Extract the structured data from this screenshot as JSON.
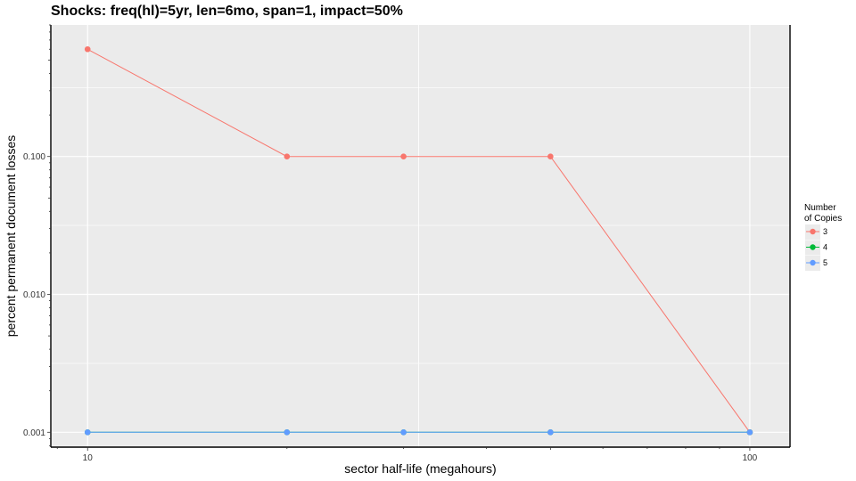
{
  "chart_data": {
    "type": "line",
    "title": "Shocks: freq(hl)=5yr, len=6mo, span=1, impact=50%",
    "xlabel": "sector half-life (megahours)",
    "ylabel": "percent permanent document losses",
    "x_scale": "log10",
    "y_scale": "log10",
    "xlim": [
      8.8,
      115
    ],
    "ylim": [
      0.00078,
      0.9
    ],
    "x_ticks": [
      10,
      100
    ],
    "x_tick_labels": [
      "10",
      "100"
    ],
    "y_ticks": [
      0.001,
      0.01,
      0.1
    ],
    "y_tick_labels": [
      "0.001",
      "0.010",
      "0.100"
    ],
    "grid": true,
    "legend": {
      "title_lines": [
        "Number",
        "of Copies"
      ],
      "position": "right"
    },
    "series": [
      {
        "name": "3",
        "color": "#f8766d",
        "x": [
          10,
          20,
          30,
          50,
          100
        ],
        "y": [
          0.6,
          0.1,
          0.1,
          0.1,
          0.001
        ]
      },
      {
        "name": "4",
        "color": "#00ba38",
        "x": [
          10,
          20,
          30,
          50,
          100
        ],
        "y": [
          0.001,
          0.001,
          0.001,
          0.001,
          0.001
        ]
      },
      {
        "name": "5",
        "color": "#619cff",
        "x": [
          10,
          20,
          30,
          50,
          100
        ],
        "y": [
          0.001,
          0.001,
          0.001,
          0.001,
          0.001
        ]
      }
    ]
  }
}
